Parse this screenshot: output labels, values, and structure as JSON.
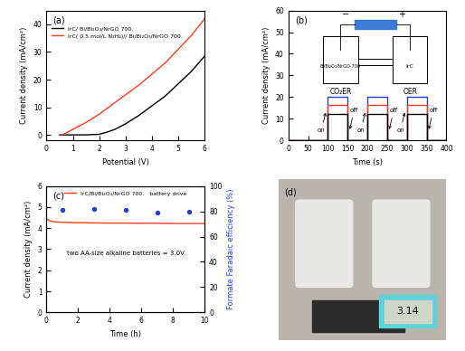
{
  "chart_data": [
    {
      "type": "line",
      "label": "(a)",
      "x_label": "Potential (V)",
      "y_label": "Current density (mA/cm²)",
      "xlim": [
        0,
        6
      ],
      "xticks": [
        0,
        1,
        2,
        3,
        4,
        5,
        6
      ],
      "ylim": [
        -2,
        45
      ],
      "yticks": [
        0,
        10,
        20,
        30,
        40
      ],
      "legend": "upper left",
      "series": [
        {
          "name": "IrC/ Bi/Bi₂O₃/NrGO 700.",
          "color": "#000000",
          "x": [
            0.5,
            1.0,
            1.5,
            2.0,
            2.3,
            2.6,
            3.0,
            3.5,
            4.0,
            4.5,
            5.0,
            5.5,
            6.0
          ],
          "values": [
            0,
            0,
            0,
            0.2,
            1,
            2,
            4,
            7,
            10.5,
            14,
            18.5,
            23,
            28.5
          ]
        },
        {
          "name": "IrC( 0.5 mol/L N₂H₄)// Bi/Bi₂O₃/NrGO 700.",
          "color": "#ff3b1f",
          "x": [
            0.6,
            1.0,
            1.5,
            2.0,
            2.5,
            3.0,
            3.5,
            4.0,
            4.5,
            5.0,
            5.5,
            6.0
          ],
          "values": [
            0,
            2,
            4.5,
            7.5,
            11,
            14.5,
            18,
            22,
            26,
            31,
            36,
            42
          ]
        }
      ]
    },
    {
      "type": "line",
      "label": "(b)",
      "x_label": "Time (s)",
      "y_label": "Current density (mA/cm²)",
      "xlim": [
        0,
        400
      ],
      "xticks": [
        0,
        50,
        100,
        150,
        200,
        250,
        300,
        350,
        400
      ],
      "ylim": [
        0,
        60
      ],
      "yticks": [
        0,
        10,
        20,
        30,
        40,
        50,
        60
      ],
      "series": [
        {
          "color": "#1f3fd1",
          "x": [
            0,
            100,
            100,
            150,
            150,
            200,
            200,
            250,
            250,
            300,
            300,
            350,
            350,
            400
          ],
          "values": [
            0,
            0,
            20,
            20,
            0,
            0,
            20,
            20,
            0,
            0,
            20,
            20,
            0,
            0
          ]
        },
        {
          "color": "#ff3b1f",
          "x": [
            0,
            100,
            100,
            150,
            150,
            200,
            200,
            250,
            250,
            300,
            300,
            350,
            350,
            400
          ],
          "values": [
            0,
            0,
            16.5,
            16.5,
            0,
            0,
            16.5,
            16.5,
            0,
            0,
            16.5,
            16.5,
            0,
            0
          ]
        },
        {
          "color": "#000000",
          "x": [
            0,
            100,
            100,
            150,
            150,
            200,
            200,
            250,
            250,
            300,
            300,
            350,
            350,
            400
          ],
          "values": [
            0,
            0,
            12,
            12,
            0,
            0,
            12,
            12,
            0,
            0,
            12,
            12,
            0,
            0
          ]
        }
      ],
      "switch_events": [
        {
          "time": 100,
          "label": "on"
        },
        {
          "time": 150,
          "label": "off"
        },
        {
          "time": 200,
          "label": "on"
        },
        {
          "time": 250,
          "label": "off"
        },
        {
          "time": 300,
          "label": "on"
        },
        {
          "time": 350,
          "label": "off"
        }
      ],
      "schematic": {
        "cathode_reaction": "CO₂ER",
        "anode_reaction": "OER",
        "cathode": "Bi/Bi₂O₃/NrGO-700",
        "anode": "IrC",
        "negative": "−",
        "positive": "+"
      }
    },
    {
      "type": "line",
      "label": "(c)",
      "x_label": "Time (h)",
      "y_label": "Current density (mA/cm²)",
      "y2_label": "Formate Faradaic efficiency (%)",
      "xlim": [
        0,
        10
      ],
      "xticks": [
        0,
        2,
        4,
        6,
        8,
        10
      ],
      "ylim": [
        0,
        6
      ],
      "yticks": [
        0,
        1,
        2,
        3,
        4,
        5,
        6
      ],
      "y2lim": [
        0,
        100
      ],
      "y2ticks": [
        0,
        20,
        40,
        60,
        80,
        100
      ],
      "legend": "upper center",
      "annotation": "two AA-size alkaline batteries = 3.0V",
      "series": [
        {
          "name": "IrC/Bi/Bi₂O₃/NrGO 700.   battery drive",
          "color": "#ff3b1f",
          "type": "line",
          "x": [
            0,
            0.2,
            0.5,
            1,
            2,
            3,
            4,
            5,
            6,
            7,
            8,
            9,
            10
          ],
          "values": [
            4.45,
            4.35,
            4.3,
            4.28,
            4.26,
            4.25,
            4.24,
            4.24,
            4.23,
            4.23,
            4.22,
            4.22,
            4.22
          ]
        },
        {
          "color": "#1f3fd1",
          "type": "scatter",
          "axis": "y2",
          "marker": "o",
          "x": [
            1,
            3,
            5,
            7,
            9
          ],
          "values": [
            81,
            82,
            81,
            79,
            80
          ]
        }
      ]
    }
  ],
  "photo": {
    "label": "(d)",
    "display_text": "3.14"
  }
}
